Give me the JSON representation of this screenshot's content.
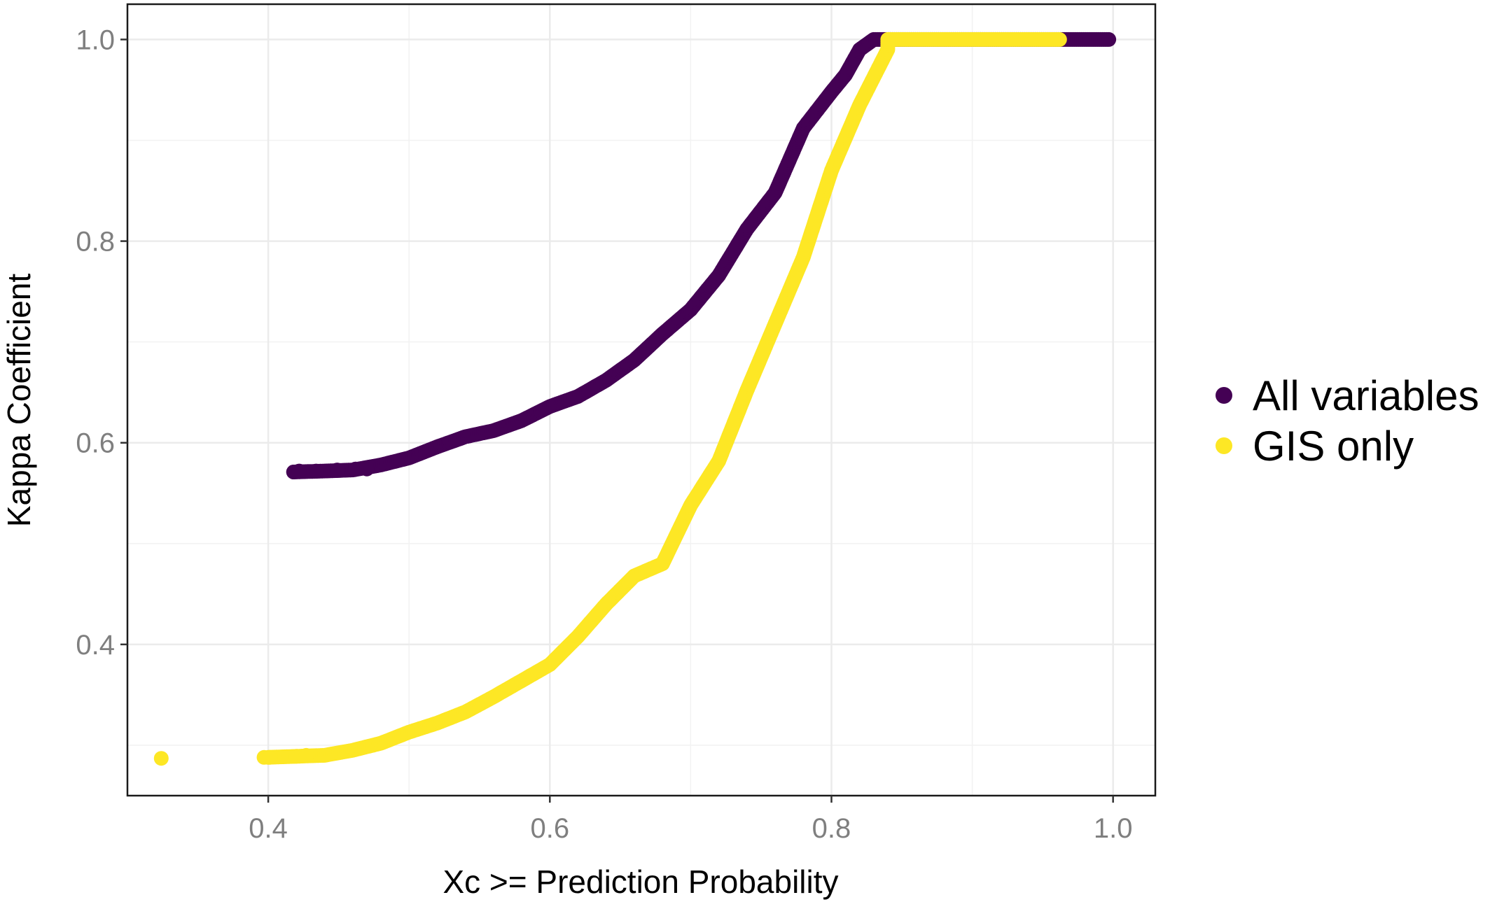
{
  "chart_data": {
    "type": "scatter",
    "title": "",
    "xlabel": "Xc >= Prediction Probability",
    "ylabel": "Kappa Coefficient",
    "xlim": [
      0.3,
      1.03
    ],
    "ylim": [
      0.25,
      1.035
    ],
    "x_ticks": [
      0.4,
      0.6,
      0.8,
      1.0
    ],
    "x_tick_labels": [
      "0.4",
      "0.6",
      "0.8",
      "1.0"
    ],
    "y_ticks": [
      0.4,
      0.6,
      0.8,
      1.0
    ],
    "y_tick_labels": [
      "0.4",
      "0.6",
      "0.8",
      "1.0"
    ],
    "grid": true,
    "legend_position": "right",
    "series": [
      {
        "name": "All variables",
        "color": "#440154",
        "curve": [
          [
            0.418,
            0.571
          ],
          [
            0.44,
            0.572
          ],
          [
            0.46,
            0.573
          ],
          [
            0.48,
            0.578
          ],
          [
            0.5,
            0.585
          ],
          [
            0.52,
            0.596
          ],
          [
            0.54,
            0.606
          ],
          [
            0.56,
            0.612
          ],
          [
            0.58,
            0.622
          ],
          [
            0.6,
            0.636
          ],
          [
            0.62,
            0.646
          ],
          [
            0.64,
            0.662
          ],
          [
            0.66,
            0.682
          ],
          [
            0.68,
            0.708
          ],
          [
            0.7,
            0.732
          ],
          [
            0.72,
            0.766
          ],
          [
            0.74,
            0.812
          ],
          [
            0.76,
            0.848
          ],
          [
            0.78,
            0.912
          ],
          [
            0.8,
            0.948
          ],
          [
            0.81,
            0.965
          ],
          [
            0.82,
            0.99
          ],
          [
            0.83,
            1.0
          ],
          [
            0.997,
            1.0
          ]
        ],
        "isolated_points": [
          [
            0.418,
            0.571
          ],
          [
            0.422,
            0.572
          ],
          [
            0.434,
            0.572
          ],
          [
            0.449,
            0.573
          ],
          [
            0.462,
            0.574
          ],
          [
            0.47,
            0.574
          ]
        ]
      },
      {
        "name": "GIS only",
        "color": "#FDE725",
        "curve": [
          [
            0.4,
            0.288
          ],
          [
            0.44,
            0.29
          ],
          [
            0.46,
            0.295
          ],
          [
            0.48,
            0.302
          ],
          [
            0.5,
            0.313
          ],
          [
            0.52,
            0.322
          ],
          [
            0.54,
            0.333
          ],
          [
            0.56,
            0.348
          ],
          [
            0.58,
            0.364
          ],
          [
            0.6,
            0.38
          ],
          [
            0.62,
            0.408
          ],
          [
            0.64,
            0.44
          ],
          [
            0.66,
            0.468
          ],
          [
            0.68,
            0.48
          ],
          [
            0.7,
            0.538
          ],
          [
            0.72,
            0.582
          ],
          [
            0.74,
            0.652
          ],
          [
            0.76,
            0.718
          ],
          [
            0.78,
            0.784
          ],
          [
            0.8,
            0.87
          ],
          [
            0.82,
            0.935
          ],
          [
            0.84,
            0.99
          ],
          [
            0.84,
            1.0
          ],
          [
            0.962,
            1.0
          ]
        ],
        "isolated_points": [
          [
            0.324,
            0.287
          ],
          [
            0.397,
            0.288
          ],
          [
            0.401,
            0.288
          ],
          [
            0.42,
            0.289
          ],
          [
            0.427,
            0.29
          ]
        ]
      }
    ]
  }
}
